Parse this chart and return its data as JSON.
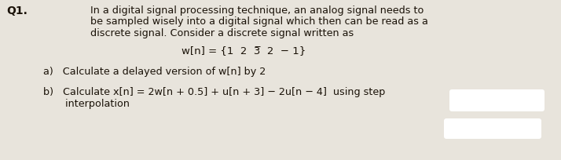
{
  "bg_color": "#e8e4dc",
  "text_color": "#1a1208",
  "q_label": "Q1.",
  "q_label_fontsize": 10,
  "q_label_fontweight": "bold",
  "para_fontsize": 9.2,
  "para_lines": [
    "In a digital signal processing technique, an analog signal needs to",
    "be sampled wisely into a digital signal which then can be read as a",
    "discrete signal. Consider a discrete signal written as"
  ],
  "formula_text": "w[n] = {1  2  3̅  2  − 1}",
  "formula_fontsize": 9.5,
  "item_a_text": "a)   Calculate a delayed version of w[n] by 2",
  "item_a_fontsize": 9.2,
  "item_b_line1": "b)   Calculate x[n] = 2w[n + 0.5] + u[n + 3] − 2u[n − 4]  using step",
  "item_b_line2": "       interpolation",
  "item_b_fontsize": 9.2,
  "redact1_color": "#ffffff",
  "redact2_color": "#ffffff"
}
